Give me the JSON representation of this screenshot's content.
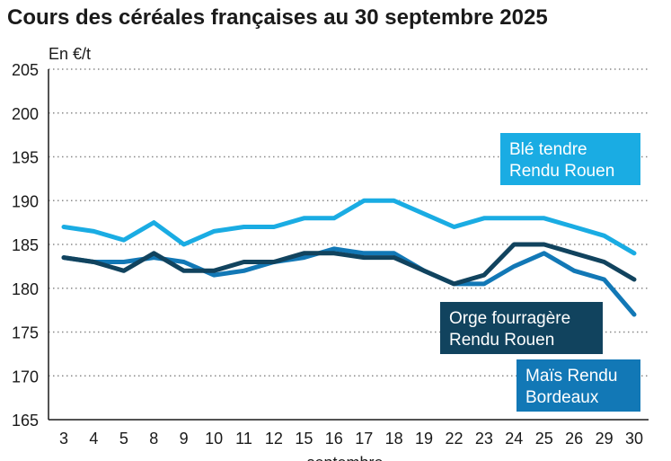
{
  "chart_data": {
    "type": "line",
    "title": "Cours des céréales françaises au 30 septembre 2025",
    "ylabel": "En €/t",
    "xlabel": "septembre",
    "ylim": [
      165,
      205
    ],
    "yticks": [
      165,
      170,
      175,
      180,
      185,
      190,
      195,
      200,
      205
    ],
    "categories": [
      "3",
      "4",
      "5",
      "8",
      "9",
      "10",
      "11",
      "12",
      "15",
      "16",
      "17",
      "18",
      "19",
      "22",
      "23",
      "24",
      "25",
      "26",
      "29",
      "30"
    ],
    "grid": "horizontal dotted",
    "series": [
      {
        "name": "Blé tendre Rendu Rouen",
        "label_lines": [
          "Blé tendre",
          "Rendu Rouen"
        ],
        "color": "#1aace3",
        "values": [
          187,
          186.5,
          185.5,
          187.5,
          185,
          186.5,
          187,
          187,
          188,
          188,
          190,
          190,
          188.5,
          187,
          188,
          188,
          188,
          187,
          186,
          184
        ]
      },
      {
        "name": "Orge fourragère Rendu Rouen",
        "label_lines": [
          "Orge fourragère",
          "Rendu Rouen"
        ],
        "color": "#11435e",
        "values": [
          183.5,
          183,
          182,
          184,
          182,
          182,
          183,
          183,
          184,
          184,
          183.5,
          183.5,
          182,
          180.5,
          181.5,
          185,
          185,
          184,
          183,
          181
        ]
      },
      {
        "name": "Maïs Rendu Bordeaux",
        "label_lines": [
          "Maïs Rendu",
          "Bordeaux"
        ],
        "color": "#1278b6",
        "values": [
          183.5,
          183,
          183,
          183.5,
          183,
          181.5,
          182,
          183,
          183.5,
          184.5,
          184,
          184,
          182,
          180.5,
          180.5,
          182.5,
          184,
          182,
          181,
          177
        ]
      }
    ]
  }
}
